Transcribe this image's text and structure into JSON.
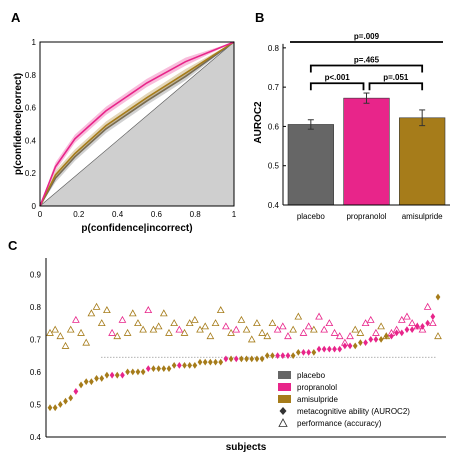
{
  "panels": {
    "a": {
      "letter": "A"
    },
    "b": {
      "letter": "B"
    },
    "c": {
      "letter": "C"
    }
  },
  "colors": {
    "placebo": "#666666",
    "propranolol": "#e8258a",
    "amisulpride": "#a67c1a",
    "chance_area": "#cfcfcf"
  },
  "chart_data": [
    {
      "id": "A",
      "type": "line",
      "xlabel": "p(confidence|incorrect)",
      "ylabel": "p(confidence|correct)",
      "xlim": [
        0,
        1
      ],
      "ylim": [
        0,
        1
      ],
      "xticks": [
        "0",
        "0.2",
        "0.4",
        "0.6",
        "0.8",
        "1"
      ],
      "yticks": [
        "0",
        "0.2",
        "0.4",
        "0.6",
        "0.8",
        "1"
      ],
      "grid": false,
      "diagonal": true,
      "series": [
        {
          "key": "placebo",
          "x": [
            0,
            0.08,
            0.18,
            0.34,
            0.55,
            0.75,
            1
          ],
          "y": [
            0,
            0.17,
            0.3,
            0.47,
            0.64,
            0.79,
            1
          ]
        },
        {
          "key": "amisulpride",
          "x": [
            0,
            0.08,
            0.18,
            0.34,
            0.55,
            0.75,
            1
          ],
          "y": [
            0,
            0.19,
            0.32,
            0.49,
            0.66,
            0.81,
            1
          ]
        },
        {
          "key": "propranolol",
          "x": [
            0,
            0.08,
            0.18,
            0.34,
            0.55,
            0.75,
            1
          ],
          "y": [
            0,
            0.24,
            0.41,
            0.58,
            0.75,
            0.88,
            1
          ]
        }
      ]
    },
    {
      "id": "B",
      "type": "bar",
      "ylabel": "AUROC2",
      "categories": [
        "placebo",
        "propranolol",
        "amisulpride"
      ],
      "values": [
        0.605,
        0.672,
        0.622
      ],
      "errors": [
        0.012,
        0.013,
        0.02
      ],
      "ylim": [
        0.4,
        0.82
      ],
      "yticks": [
        "0.4",
        "0.5",
        "0.6",
        "0.7",
        "0.8"
      ],
      "brackets": [
        {
          "from": 0,
          "to": 1,
          "label": "p<.001"
        },
        {
          "from": 1,
          "to": 2,
          "label": "p=.051"
        },
        {
          "from": 0,
          "to": 2,
          "label": "p=.465"
        },
        {
          "from": 0,
          "to": 2,
          "label": "p=.009"
        }
      ]
    },
    {
      "id": "C",
      "type": "scatter",
      "xlabel": "subjects",
      "ylim": [
        0.4,
        0.95
      ],
      "yticks": [
        "0.4",
        "0.5",
        "0.6",
        "0.7",
        "0.8",
        "0.9"
      ],
      "reference_y": 0.645,
      "legend": [
        {
          "label": "placebo",
          "swatch": "placebo"
        },
        {
          "label": "propranolol",
          "swatch": "propranolol"
        },
        {
          "label": "amisulpride",
          "swatch": "amisulpride"
        },
        {
          "label": "metacognitive ability (AUROC2)",
          "swatch": "diamond"
        },
        {
          "label": "performance (accuracy)",
          "swatch": "triangle"
        }
      ],
      "auroc2": [
        0.49,
        0.49,
        0.5,
        0.51,
        0.52,
        0.54,
        0.56,
        0.57,
        0.57,
        0.58,
        0.58,
        0.59,
        0.59,
        0.59,
        0.59,
        0.6,
        0.6,
        0.6,
        0.6,
        0.61,
        0.61,
        0.61,
        0.61,
        0.61,
        0.62,
        0.62,
        0.62,
        0.62,
        0.62,
        0.63,
        0.63,
        0.63,
        0.63,
        0.63,
        0.64,
        0.64,
        0.64,
        0.64,
        0.64,
        0.64,
        0.64,
        0.64,
        0.65,
        0.65,
        0.65,
        0.65,
        0.65,
        0.65,
        0.66,
        0.66,
        0.66,
        0.66,
        0.67,
        0.67,
        0.67,
        0.67,
        0.67,
        0.68,
        0.68,
        0.68,
        0.69,
        0.69,
        0.7,
        0.7,
        0.7,
        0.71,
        0.71,
        0.72,
        0.72,
        0.73,
        0.73,
        0.74,
        0.74,
        0.75,
        0.77,
        0.83
      ],
      "groups": [
        "a",
        "a",
        "a",
        "a",
        "a",
        "p",
        "a",
        "a",
        "a",
        "a",
        "a",
        "a",
        "p",
        "a",
        "p",
        "a",
        "a",
        "a",
        "a",
        "p",
        "a",
        "a",
        "a",
        "a",
        "a",
        "p",
        "a",
        "a",
        "a",
        "a",
        "a",
        "a",
        "a",
        "a",
        "p",
        "a",
        "p",
        "a",
        "a",
        "a",
        "a",
        "a",
        "a",
        "a",
        "p",
        "p",
        "p",
        "a",
        "a",
        "p",
        "p",
        "a",
        "p",
        "p",
        "p",
        "p",
        "p",
        "p",
        "p",
        "a",
        "a",
        "p",
        "p",
        "p",
        "a",
        "a",
        "p",
        "p",
        "p",
        "p",
        "p",
        "p",
        "p",
        "p",
        "p",
        "a"
      ],
      "accuracy": [
        0.72,
        0.73,
        0.71,
        0.68,
        0.73,
        0.76,
        0.72,
        0.69,
        0.78,
        0.8,
        0.75,
        0.79,
        0.72,
        0.71,
        0.76,
        0.72,
        0.78,
        0.75,
        0.73,
        0.79,
        0.73,
        0.74,
        0.78,
        0.72,
        0.75,
        0.73,
        0.72,
        0.75,
        0.76,
        0.73,
        0.74,
        0.71,
        0.75,
        0.79,
        0.74,
        0.72,
        0.73,
        0.76,
        0.73,
        0.7,
        0.75,
        0.72,
        0.71,
        0.75,
        0.73,
        0.74,
        0.71,
        0.73,
        0.77,
        0.72,
        0.74,
        0.73,
        0.77,
        0.73,
        0.75,
        0.72,
        0.71,
        0.69,
        0.71,
        0.73,
        0.72,
        0.75,
        0.76,
        0.72,
        0.74,
        0.71,
        0.72,
        0.73,
        0.76,
        0.77,
        0.75,
        0.74,
        0.73,
        0.8,
        0.75,
        0.71
      ]
    }
  ]
}
